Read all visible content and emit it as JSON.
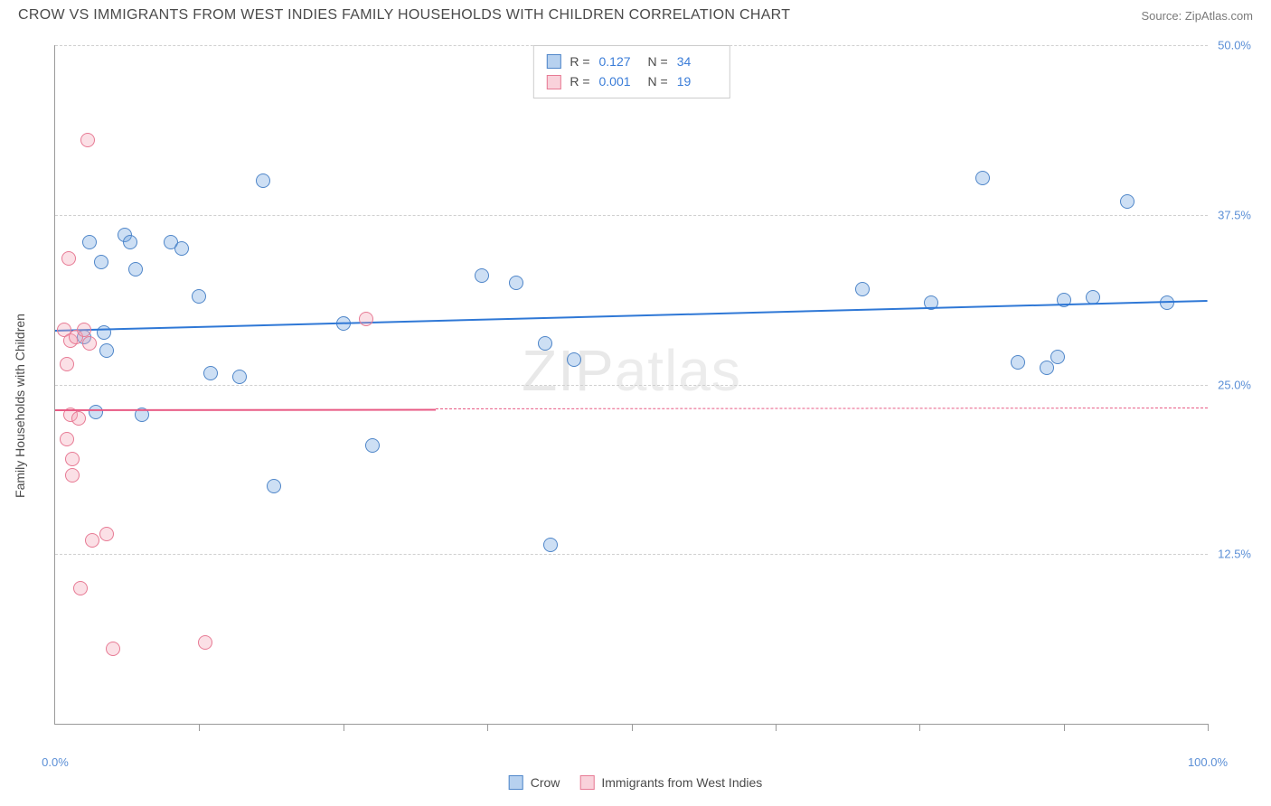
{
  "title": "CROW VS IMMIGRANTS FROM WEST INDIES FAMILY HOUSEHOLDS WITH CHILDREN CORRELATION CHART",
  "source": "Source: ZipAtlas.com",
  "watermark": "ZIPatlas",
  "ylabel": "Family Households with Children",
  "chart": {
    "type": "scatter",
    "xlim": [
      0,
      100
    ],
    "ylim": [
      0,
      50
    ],
    "xtick_positions": [
      12.5,
      25,
      37.5,
      50,
      62.5,
      75,
      87.5,
      100
    ],
    "xtick_labels": {
      "first": "0.0%",
      "last": "100.0%"
    },
    "ytick_positions": [
      12.5,
      25.0,
      37.5,
      50.0
    ],
    "ytick_labels": [
      "12.5%",
      "25.0%",
      "37.5%",
      "50.0%"
    ],
    "grid_color": "#d0d0d0",
    "axis_color": "#9a9a9a",
    "background_color": "#ffffff",
    "marker_radius": 8,
    "marker_stroke_width": 1.5,
    "marker_fill_opacity": 0.35
  },
  "series": [
    {
      "name": "Crow",
      "color": "#6fa3e0",
      "stroke": "#4f86c9",
      "trend": {
        "x1": 0,
        "y1": 29.0,
        "x2": 100,
        "y2": 31.2,
        "color": "#2f78d6",
        "dash_from_x": null
      },
      "stats": {
        "R": "0.127",
        "N": "34"
      },
      "points": [
        [
          2.5,
          28.5
        ],
        [
          3.0,
          35.5
        ],
        [
          3.5,
          23.0
        ],
        [
          4.0,
          34.0
        ],
        [
          4.2,
          28.8
        ],
        [
          4.5,
          27.5
        ],
        [
          6.0,
          36.0
        ],
        [
          6.5,
          35.5
        ],
        [
          7.0,
          33.5
        ],
        [
          7.5,
          22.8
        ],
        [
          10.0,
          35.5
        ],
        [
          11.0,
          35.0
        ],
        [
          12.5,
          31.5
        ],
        [
          13.5,
          25.8
        ],
        [
          16.0,
          25.6
        ],
        [
          18.0,
          40.0
        ],
        [
          19.0,
          17.5
        ],
        [
          25.0,
          29.5
        ],
        [
          27.5,
          20.5
        ],
        [
          37.0,
          33.0
        ],
        [
          40.0,
          32.5
        ],
        [
          42.5,
          28.0
        ],
        [
          43.0,
          13.2
        ],
        [
          45.0,
          26.8
        ],
        [
          70.0,
          32.0
        ],
        [
          76.0,
          31.0
        ],
        [
          80.5,
          40.2
        ],
        [
          83.5,
          26.6
        ],
        [
          86.0,
          26.2
        ],
        [
          87.0,
          27.0
        ],
        [
          87.5,
          31.2
        ],
        [
          90.0,
          31.4
        ],
        [
          93.0,
          38.5
        ],
        [
          96.5,
          31.0
        ]
      ]
    },
    {
      "name": "Immigrants from West Indies",
      "color": "#f4a6b8",
      "stroke": "#e77a94",
      "trend": {
        "x1": 0,
        "y1": 23.2,
        "x2": 100,
        "y2": 23.3,
        "color": "#e85a84",
        "dash_from_x": 33
      },
      "stats": {
        "R": "0.001",
        "N": "19"
      },
      "points": [
        [
          0.8,
          29.0
        ],
        [
          1.0,
          21.0
        ],
        [
          1.0,
          26.5
        ],
        [
          1.2,
          34.3
        ],
        [
          1.3,
          28.2
        ],
        [
          1.3,
          22.8
        ],
        [
          1.5,
          19.5
        ],
        [
          1.5,
          18.3
        ],
        [
          1.8,
          28.5
        ],
        [
          2.0,
          22.5
        ],
        [
          2.2,
          10.0
        ],
        [
          2.5,
          29.0
        ],
        [
          2.8,
          43.0
        ],
        [
          3.0,
          28.0
        ],
        [
          3.2,
          13.5
        ],
        [
          4.5,
          14.0
        ],
        [
          5.0,
          5.5
        ],
        [
          13.0,
          6.0
        ],
        [
          27.0,
          29.8
        ]
      ]
    }
  ],
  "legend": {
    "stats_labels": {
      "R": "R =",
      "N": "N ="
    },
    "bottom": [
      "Crow",
      "Immigrants from West Indies"
    ]
  }
}
